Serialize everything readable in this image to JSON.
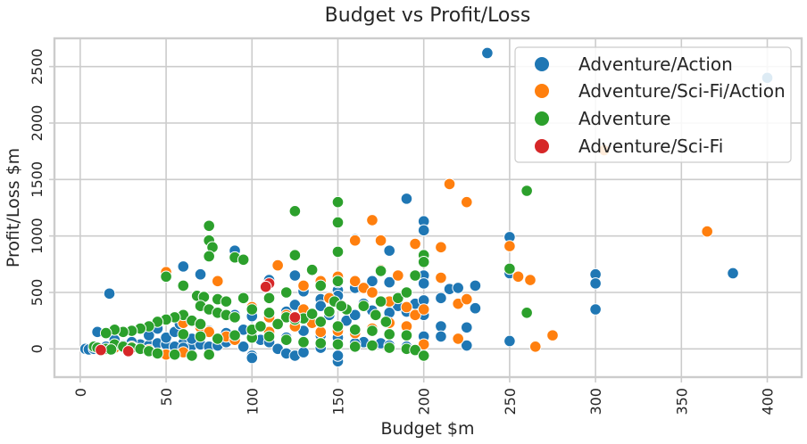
{
  "chart_data": {
    "type": "scatter",
    "title": "Budget vs Profit/Loss",
    "xlabel": "Budget $m",
    "ylabel": "Profit/Loss $m",
    "xlim": [
      -15,
      420
    ],
    "ylim": [
      -250,
      2750
    ],
    "xticks": [
      0,
      50,
      100,
      150,
      200,
      250,
      300,
      350,
      400
    ],
    "yticks": [
      0,
      500,
      1000,
      1500,
      2000,
      2500
    ],
    "grid": true,
    "legend": "top-right",
    "series": [
      {
        "name": "Adventure/Action",
        "color": "#1f77b4",
        "points": [
          [
            237,
            2620
          ],
          [
            400,
            2400
          ],
          [
            190,
            1330
          ],
          [
            200,
            1130
          ],
          [
            200,
            1050
          ],
          [
            160,
            970
          ],
          [
            250,
            990
          ],
          [
            90,
            870
          ],
          [
            180,
            870
          ],
          [
            60,
            730
          ],
          [
            70,
            660
          ],
          [
            250,
            700
          ],
          [
            250,
            670
          ],
          [
            300,
            660
          ],
          [
            300,
            580
          ],
          [
            380,
            670
          ],
          [
            17,
            490
          ],
          [
            110,
            610
          ],
          [
            125,
            650
          ],
          [
            150,
            520
          ],
          [
            150,
            590
          ],
          [
            160,
            540
          ],
          [
            170,
            600
          ],
          [
            180,
            590
          ],
          [
            200,
            650
          ],
          [
            200,
            580
          ],
          [
            215,
            530
          ],
          [
            220,
            540
          ],
          [
            230,
            560
          ],
          [
            130,
            510
          ],
          [
            140,
            440
          ],
          [
            150,
            470
          ],
          [
            165,
            400
          ],
          [
            175,
            420
          ],
          [
            185,
            380
          ],
          [
            195,
            400
          ],
          [
            200,
            430
          ],
          [
            210,
            450
          ],
          [
            230,
            360
          ],
          [
            300,
            350
          ],
          [
            90,
            300
          ],
          [
            100,
            290
          ],
          [
            110,
            310
          ],
          [
            120,
            330
          ],
          [
            125,
            390
          ],
          [
            130,
            320
          ],
          [
            140,
            380
          ],
          [
            145,
            300
          ],
          [
            155,
            250
          ],
          [
            160,
            300
          ],
          [
            170,
            340
          ],
          [
            180,
            320
          ],
          [
            190,
            330
          ],
          [
            200,
            300
          ],
          [
            210,
            200
          ],
          [
            225,
            190
          ],
          [
            100,
            120
          ],
          [
            105,
            80
          ],
          [
            110,
            60
          ],
          [
            120,
            100
          ],
          [
            130,
            160
          ],
          [
            140,
            120
          ],
          [
            150,
            100
          ],
          [
            165,
            60
          ],
          [
            175,
            50
          ],
          [
            180,
            30
          ],
          [
            190,
            20
          ],
          [
            200,
            110
          ],
          [
            210,
            110
          ],
          [
            225,
            30
          ],
          [
            250,
            70
          ],
          [
            60,
            50
          ],
          [
            65,
            30
          ],
          [
            70,
            40
          ],
          [
            75,
            20
          ],
          [
            80,
            30
          ],
          [
            85,
            60
          ],
          [
            90,
            80
          ],
          [
            95,
            20
          ],
          [
            100,
            -60
          ],
          [
            100,
            -80
          ],
          [
            115,
            0
          ],
          [
            120,
            -40
          ],
          [
            125,
            -60
          ],
          [
            130,
            -30
          ],
          [
            140,
            10
          ],
          [
            150,
            -110
          ],
          [
            150,
            -60
          ],
          [
            160,
            50
          ],
          [
            10,
            0
          ],
          [
            12,
            -10
          ],
          [
            15,
            20
          ],
          [
            20,
            10
          ],
          [
            25,
            30
          ],
          [
            30,
            10
          ],
          [
            35,
            40
          ],
          [
            40,
            30
          ],
          [
            45,
            50
          ],
          [
            50,
            40
          ],
          [
            55,
            20
          ],
          [
            60,
            10
          ],
          [
            40,
            120
          ],
          [
            50,
            100
          ],
          [
            55,
            150
          ],
          [
            65,
            90
          ],
          [
            45,
            180
          ],
          [
            58,
            220
          ],
          [
            70,
            190
          ],
          [
            75,
            160
          ],
          [
            85,
            140
          ],
          [
            95,
            170
          ],
          [
            10,
            150
          ],
          [
            20,
            80
          ],
          [
            30,
            60
          ],
          [
            3,
            0
          ],
          [
            5,
            -5
          ],
          [
            8,
            0
          ]
        ]
      },
      {
        "name": "Adventure/Sci-Fi/Action",
        "color": "#ff7f0e",
        "points": [
          [
            305,
            1760
          ],
          [
            215,
            1460
          ],
          [
            225,
            1300
          ],
          [
            170,
            1140
          ],
          [
            195,
            930
          ],
          [
            210,
            900
          ],
          [
            250,
            910
          ],
          [
            365,
            1040
          ],
          [
            115,
            740
          ],
          [
            160,
            960
          ],
          [
            175,
            960
          ],
          [
            175,
            700
          ],
          [
            185,
            650
          ],
          [
            210,
            630
          ],
          [
            220,
            400
          ],
          [
            225,
            440
          ],
          [
            255,
            640
          ],
          [
            262,
            610
          ],
          [
            50,
            680
          ],
          [
            80,
            600
          ],
          [
            130,
            560
          ],
          [
            140,
            600
          ],
          [
            150,
            640
          ],
          [
            160,
            600
          ],
          [
            165,
            540
          ],
          [
            170,
            500
          ],
          [
            180,
            420
          ],
          [
            190,
            370
          ],
          [
            195,
            300
          ],
          [
            200,
            350
          ],
          [
            180,
            230
          ],
          [
            170,
            180
          ],
          [
            160,
            140
          ],
          [
            150,
            160
          ],
          [
            140,
            150
          ],
          [
            135,
            230
          ],
          [
            125,
            200
          ],
          [
            110,
            150
          ],
          [
            100,
            370
          ],
          [
            60,
            230
          ],
          [
            70,
            190
          ],
          [
            75,
            150
          ],
          [
            85,
            110
          ],
          [
            90,
            80
          ],
          [
            190,
            200
          ],
          [
            200,
            40
          ],
          [
            220,
            90
          ],
          [
            265,
            20
          ],
          [
            275,
            120
          ],
          [
            50,
            -50
          ],
          [
            60,
            -30
          ],
          [
            40,
            -10
          ],
          [
            30,
            20
          ],
          [
            20,
            10
          ],
          [
            110,
            280
          ],
          [
            120,
            300
          ],
          [
            130,
            350
          ],
          [
            145,
            450
          ]
        ]
      },
      {
        "name": "Adventure",
        "color": "#2ca02c",
        "points": [
          [
            260,
            1400
          ],
          [
            150,
            1300
          ],
          [
            125,
            1220
          ],
          [
            150,
            1120
          ],
          [
            75,
            1090
          ],
          [
            75,
            960
          ],
          [
            77,
            900
          ],
          [
            75,
            820
          ],
          [
            90,
            810
          ],
          [
            95,
            790
          ],
          [
            125,
            830
          ],
          [
            150,
            860
          ],
          [
            200,
            830
          ],
          [
            200,
            770
          ],
          [
            50,
            640
          ],
          [
            60,
            560
          ],
          [
            68,
            470
          ],
          [
            72,
            460
          ],
          [
            80,
            440
          ],
          [
            85,
            420
          ],
          [
            95,
            450
          ],
          [
            110,
            450
          ],
          [
            120,
            500
          ],
          [
            135,
            700
          ],
          [
            150,
            600
          ],
          [
            175,
            690
          ],
          [
            195,
            650
          ],
          [
            250,
            710
          ],
          [
            260,
            320
          ],
          [
            70,
            380
          ],
          [
            75,
            350
          ],
          [
            80,
            320
          ],
          [
            85,
            300
          ],
          [
            90,
            280
          ],
          [
            100,
            350
          ],
          [
            110,
            320
          ],
          [
            120,
            280
          ],
          [
            130,
            270
          ],
          [
            140,
            240
          ],
          [
            150,
            200
          ],
          [
            160,
            170
          ],
          [
            170,
            160
          ],
          [
            180,
            130
          ],
          [
            190,
            120
          ],
          [
            60,
            300
          ],
          [
            55,
            280
          ],
          [
            50,
            260
          ],
          [
            45,
            240
          ],
          [
            65,
            250
          ],
          [
            70,
            220
          ],
          [
            40,
            200
          ],
          [
            35,
            180
          ],
          [
            30,
            160
          ],
          [
            25,
            150
          ],
          [
            20,
            170
          ],
          [
            15,
            140
          ],
          [
            60,
            130
          ],
          [
            70,
            110
          ],
          [
            80,
            90
          ],
          [
            90,
            120
          ],
          [
            100,
            100
          ],
          [
            110,
            110
          ],
          [
            120,
            80
          ],
          [
            130,
            60
          ],
          [
            140,
            50
          ],
          [
            150,
            40
          ],
          [
            160,
            20
          ],
          [
            170,
            30
          ],
          [
            180,
            10
          ],
          [
            190,
            0
          ],
          [
            195,
            -10
          ],
          [
            200,
            -60
          ],
          [
            20,
            40
          ],
          [
            25,
            20
          ],
          [
            30,
            10
          ],
          [
            35,
            0
          ],
          [
            40,
            -20
          ],
          [
            45,
            -40
          ],
          [
            55,
            -50
          ],
          [
            65,
            -60
          ],
          [
            75,
            -50
          ],
          [
            12,
            -10
          ],
          [
            15,
            0
          ],
          [
            18,
            -5
          ],
          [
            8,
            20
          ],
          [
            10,
            10
          ],
          [
            100,
            170
          ],
          [
            105,
            200
          ],
          [
            115,
            220
          ],
          [
            125,
            260
          ],
          [
            135,
            310
          ],
          [
            145,
            330
          ],
          [
            155,
            350
          ],
          [
            165,
            380
          ],
          [
            175,
            420
          ],
          [
            185,
            450
          ],
          [
            190,
            500
          ],
          [
            140,
            560
          ],
          [
            148,
            420
          ],
          [
            152,
            380
          ],
          [
            172,
            300
          ],
          [
            178,
            240
          ]
        ]
      },
      {
        "name": "Adventure/Sci-Fi",
        "color": "#d62728",
        "points": [
          [
            110,
            580
          ],
          [
            108,
            550
          ],
          [
            125,
            280
          ],
          [
            28,
            -20
          ],
          [
            12,
            -10
          ]
        ]
      }
    ]
  }
}
